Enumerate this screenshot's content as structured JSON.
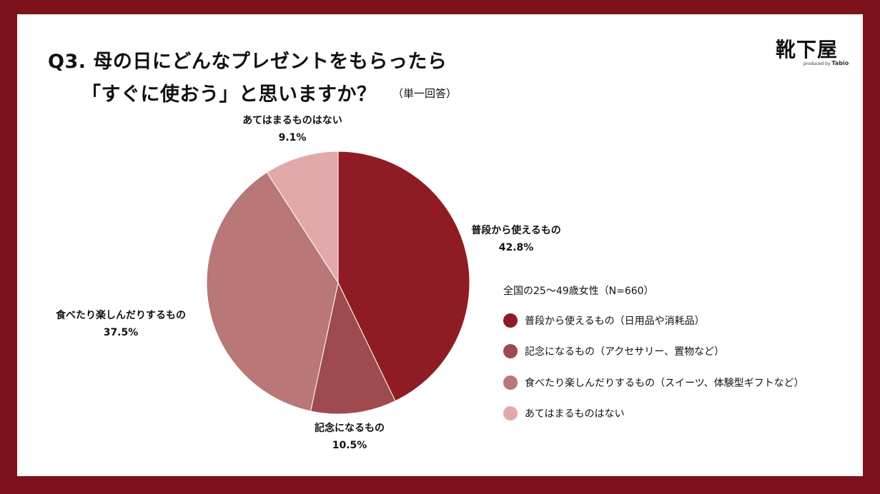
{
  "header": {
    "title_line1": "Q3. 母の日にどんなプレゼントをもらったら",
    "title_line2": "「すぐに使おう」と思いますか？",
    "title_note": "（単一回答）"
  },
  "logo": {
    "text": "靴下屋",
    "sub_small": "produced by",
    "sub_brand": "Tabio"
  },
  "colors": {
    "frame": "#7d121b",
    "slice1": "#8f1c24",
    "slice2": "#9e4a4f",
    "slice3": "#b97778",
    "slice4": "#e2a9ab"
  },
  "chart_data": {
    "type": "pie",
    "slices": [
      {
        "label": "普段から使えるもの",
        "value": 42.8,
        "value_label": "42.8%",
        "legend": "普段から使えるもの（日用品や消耗品）",
        "color": "#8f1c24"
      },
      {
        "label": "記念になるもの",
        "value": 10.5,
        "value_label": "10.5%",
        "legend": "記念になるもの（アクセサリー、置物など）",
        "color": "#9e4a4f"
      },
      {
        "label": "食べたり楽しんだりするもの",
        "value": 37.5,
        "value_label": "37.5%",
        "legend": "食べたり楽しんだりするもの（スイーツ、体験型ギフトなど）",
        "color": "#b97778"
      },
      {
        "label": "あてはまるものはない",
        "value": 9.1,
        "value_label": "9.1%",
        "legend": "あてはまるものはない",
        "color": "#e2a9ab"
      }
    ],
    "legend_title": "全国の25〜49歳女性（N=660）",
    "legend_position": "right"
  }
}
